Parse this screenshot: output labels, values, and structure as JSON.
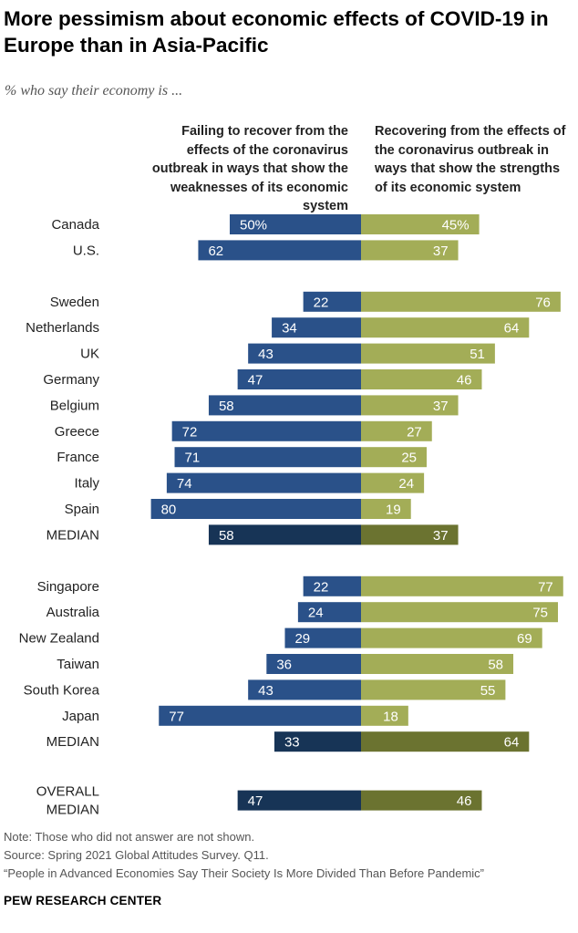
{
  "title": "More pessimism about economic effects of COVID-19 in Europe than in Asia-Pacific",
  "subtitle": "% who say their economy is ...",
  "column_headers": {
    "left": "Failing to recover from the effects of the coronavirus outbreak in ways that show the weaknesses of its economic system",
    "right": "Recovering from the effects of the coronavirus outbreak in ways that show the strengths of its economic system"
  },
  "colors": {
    "left": "#2a5189",
    "left_median": "#173456",
    "right": "#a3ad57",
    "right_median": "#6b7330"
  },
  "chart_data": {
    "type": "bar",
    "orientation": "horizontal-diverging",
    "series": [
      {
        "name": "Failing to recover from the effects of the coronavirus outbreak in ways that show the weaknesses of its economic system",
        "side": "left"
      },
      {
        "name": "Recovering from the effects of the coronavirus outbreak in ways that show the strengths of its economic system",
        "side": "right"
      }
    ],
    "rows": [
      {
        "label": "Canada",
        "left": 50,
        "right": 45,
        "left_label": "50%",
        "right_label": "45%",
        "median": false,
        "group": "north-america"
      },
      {
        "label": "U.S.",
        "left": 62,
        "right": 37,
        "left_label": "62",
        "right_label": "37",
        "median": false,
        "group": "north-america"
      },
      {
        "label": "Sweden",
        "left": 22,
        "right": 76,
        "left_label": "22",
        "right_label": "76",
        "median": false,
        "group": "europe"
      },
      {
        "label": "Netherlands",
        "left": 34,
        "right": 64,
        "left_label": "34",
        "right_label": "64",
        "median": false,
        "group": "europe"
      },
      {
        "label": "UK",
        "left": 43,
        "right": 51,
        "left_label": "43",
        "right_label": "51",
        "median": false,
        "group": "europe"
      },
      {
        "label": "Germany",
        "left": 47,
        "right": 46,
        "left_label": "47",
        "right_label": "46",
        "median": false,
        "group": "europe"
      },
      {
        "label": "Belgium",
        "left": 58,
        "right": 37,
        "left_label": "58",
        "right_label": "37",
        "median": false,
        "group": "europe"
      },
      {
        "label": "Greece",
        "left": 72,
        "right": 27,
        "left_label": "72",
        "right_label": "27",
        "median": false,
        "group": "europe"
      },
      {
        "label": "France",
        "left": 71,
        "right": 25,
        "left_label": "71",
        "right_label": "25",
        "median": false,
        "group": "europe"
      },
      {
        "label": "Italy",
        "left": 74,
        "right": 24,
        "left_label": "74",
        "right_label": "24",
        "median": false,
        "group": "europe"
      },
      {
        "label": "Spain",
        "left": 80,
        "right": 19,
        "left_label": "80",
        "right_label": "19",
        "median": false,
        "group": "europe"
      },
      {
        "label": "MEDIAN",
        "left": 58,
        "right": 37,
        "left_label": "58",
        "right_label": "37",
        "median": true,
        "group": "europe"
      },
      {
        "label": "Singapore",
        "left": 22,
        "right": 77,
        "left_label": "22",
        "right_label": "77",
        "median": false,
        "group": "asia-pacific"
      },
      {
        "label": "Australia",
        "left": 24,
        "right": 75,
        "left_label": "24",
        "right_label": "75",
        "median": false,
        "group": "asia-pacific"
      },
      {
        "label": "New Zealand",
        "left": 29,
        "right": 69,
        "left_label": "29",
        "right_label": "69",
        "median": false,
        "group": "asia-pacific"
      },
      {
        "label": "Taiwan",
        "left": 36,
        "right": 58,
        "left_label": "36",
        "right_label": "58",
        "median": false,
        "group": "asia-pacific"
      },
      {
        "label": "South Korea",
        "left": 43,
        "right": 55,
        "left_label": "43",
        "right_label": "55",
        "median": false,
        "group": "asia-pacific"
      },
      {
        "label": "Japan",
        "left": 77,
        "right": 18,
        "left_label": "77",
        "right_label": "18",
        "median": false,
        "group": "asia-pacific"
      },
      {
        "label": "MEDIAN",
        "left": 33,
        "right": 64,
        "left_label": "33",
        "right_label": "64",
        "median": true,
        "group": "asia-pacific"
      },
      {
        "label": [
          "OVERALL",
          "MEDIAN"
        ],
        "left": 47,
        "right": 46,
        "left_label": "47",
        "right_label": "46",
        "median": true,
        "group": "overall"
      }
    ],
    "xlim": [
      0,
      100
    ]
  },
  "footer": {
    "note": "Note: Those who did not answer are not shown.",
    "source": "Source: Spring 2021 Global Attitudes Survey. Q11.",
    "report": "“People in Advanced Economies Say Their Society Is More Divided Than Before Pandemic”"
  },
  "brand": "PEW RESEARCH CENTER"
}
